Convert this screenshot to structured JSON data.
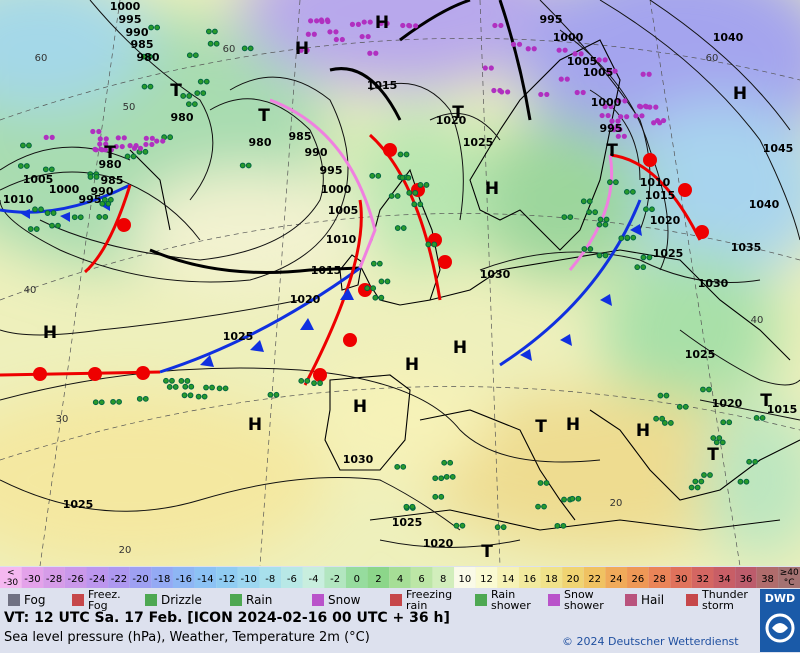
{
  "map": {
    "pressure_labels": [
      1000,
      995,
      990,
      985,
      980,
      980,
      980,
      985,
      990,
      995,
      1000,
      1005,
      1010,
      1015,
      1020,
      1025,
      1015,
      1020,
      1025,
      995,
      1000,
      1005,
      1005,
      1000,
      995,
      1010,
      1015,
      1020,
      1025,
      1030,
      1030,
      1035,
      1040,
      1045,
      1040,
      1025,
      1020,
      1015,
      1030,
      1025,
      1025,
      1020,
      980,
      985,
      990,
      995,
      1000,
      1005,
      1010
    ],
    "centers": [
      "H",
      "H",
      "H",
      "H",
      "H",
      "H",
      "H",
      "H",
      "H",
      "H",
      "H",
      "T",
      "T",
      "T",
      "T",
      "T",
      "T",
      "T",
      "T",
      "T"
    ],
    "isotherm_labels": [
      60,
      60,
      50,
      40,
      30,
      20,
      20,
      40,
      60
    ]
  },
  "legend": {
    "temperature": {
      "low_label": [
        "<",
        "-30"
      ],
      "low_color": "#f4b8f0",
      "steps": [
        {
          "value": -30,
          "color": "#e4a2ea"
        },
        {
          "value": -28,
          "color": "#d69ce8"
        },
        {
          "value": -26,
          "color": "#ca98ea"
        },
        {
          "value": -24,
          "color": "#bc96ee"
        },
        {
          "value": -22,
          "color": "#ae98f0"
        },
        {
          "value": -20,
          "color": "#9ea0f2"
        },
        {
          "value": -18,
          "color": "#94aaf4"
        },
        {
          "value": -16,
          "color": "#8eb6f4"
        },
        {
          "value": -14,
          "color": "#8cc2f4"
        },
        {
          "value": -12,
          "color": "#90ccf2"
        },
        {
          "value": -10,
          "color": "#9cd6f0"
        },
        {
          "value": -8,
          "color": "#a8e0ec"
        },
        {
          "value": -6,
          "color": "#b8e8e6"
        },
        {
          "value": -4,
          "color": "#c8eede"
        },
        {
          "value": -2,
          "color": "#b2e6c0"
        },
        {
          "value": 0,
          "color": "#96dc9e"
        },
        {
          "value": 2,
          "color": "#8cd68a"
        },
        {
          "value": 4,
          "color": "#a6de96"
        },
        {
          "value": 6,
          "color": "#bce6a6"
        },
        {
          "value": 8,
          "color": "#d2eebc"
        },
        {
          "value": 10,
          "color": "#fafae8"
        },
        {
          "value": 12,
          "color": "#fafad2"
        },
        {
          "value": 14,
          "color": "#f6f2b6"
        },
        {
          "value": 16,
          "color": "#f2ea9e"
        },
        {
          "value": 18,
          "color": "#f0e28a"
        },
        {
          "value": 20,
          "color": "#f0d472"
        },
        {
          "value": 22,
          "color": "#f0c262"
        },
        {
          "value": 24,
          "color": "#f0aa5a"
        },
        {
          "value": 26,
          "color": "#ee9856"
        },
        {
          "value": 28,
          "color": "#ea8458"
        },
        {
          "value": 30,
          "color": "#e0725c"
        },
        {
          "value": 32,
          "color": "#d46662"
        },
        {
          "value": 34,
          "color": "#c85e66"
        },
        {
          "value": 36,
          "color": "#bc5c6c"
        },
        {
          "value": 38,
          "color": "#b06c6c"
        }
      ],
      "high_label": [
        "≥40",
        "°C"
      ],
      "high_color": "#a47272"
    },
    "weather": [
      [
        "Fog"
      ],
      [
        "Freez.",
        "Fog"
      ],
      [
        "Drizzle"
      ],
      [
        "Rain"
      ],
      [
        "Snow"
      ],
      [
        "Freezing",
        "rain"
      ],
      [
        "Rain",
        "shower"
      ],
      [
        "Snow",
        "shower"
      ],
      [
        "Hail"
      ],
      [
        "Thunder",
        "storm"
      ]
    ]
  },
  "footer": {
    "valid_time": "VT: 12 UTC Sa.  17 Feb. [ICON 2024-02-16  00 UTC + 36 h]",
    "description": "Sea level pressure (hPa), Weather, Temperature 2m (°C)",
    "copyright": "© 2024 Deutscher Wetterdienst",
    "logo": "DWD"
  }
}
